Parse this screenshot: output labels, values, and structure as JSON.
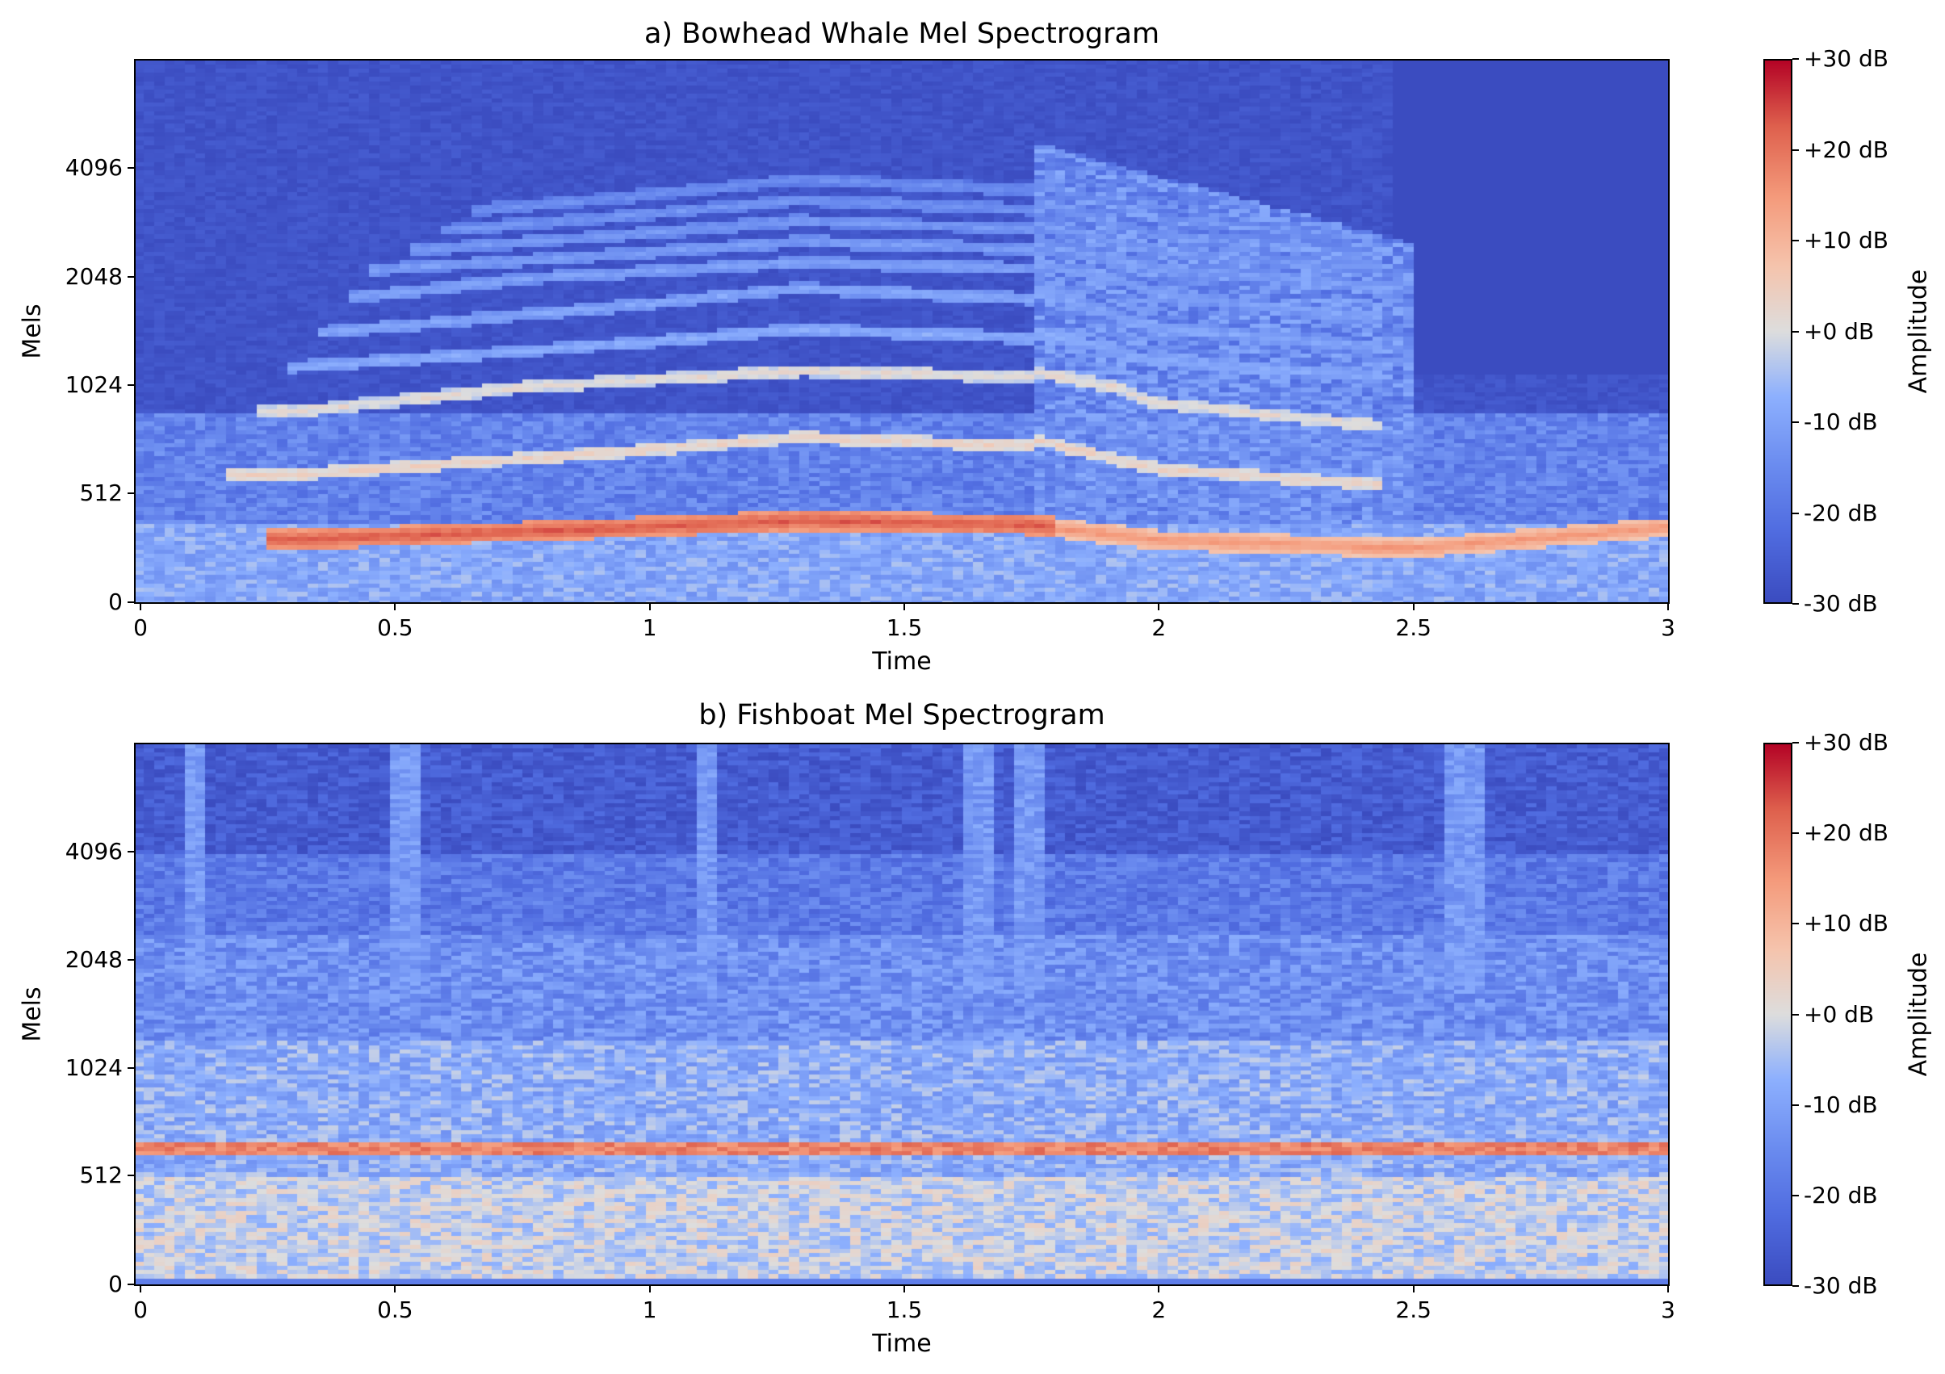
{
  "chart_data": [
    {
      "type": "heatmap",
      "title": "a) Bowhead Whale Mel Spectrogram",
      "xlabel": "Time",
      "ylabel": "Mels",
      "x_ticks": [
        "0",
        "0.5",
        "1",
        "1.5",
        "2",
        "2.5",
        "3"
      ],
      "y_ticks": [
        "0",
        "512",
        "1024",
        "2048",
        "4096"
      ],
      "xlim": [
        0,
        3
      ],
      "colorbar": {
        "label": "Amplitude",
        "ticks": [
          "+30 dB",
          "+20 dB",
          "+10 dB",
          "+0 dB",
          "-10 dB",
          "-20 dB",
          "-30 dB"
        ],
        "range": [
          -30,
          30
        ]
      },
      "colormap": "coolwarm",
      "dominant_features": {
        "fundamental_band": [
          [
            0.3,
            300
          ],
          [
            1.0,
            360
          ],
          [
            1.3,
            390
          ],
          [
            1.75,
            370
          ],
          [
            2.0,
            300
          ],
          [
            2.5,
            260
          ],
          [
            3.0,
            360
          ]
        ],
        "harmonic_bands": [
          [
            0.5,
            620
          ],
          [
            1.3,
            1080
          ],
          [
            1.75,
            1060
          ]
        ],
        "peak_db": 22
      }
    },
    {
      "type": "heatmap",
      "title": "b) Fishboat Mel Spectrogram",
      "xlabel": "Time",
      "ylabel": "Mels",
      "x_ticks": [
        "0",
        "0.5",
        "1",
        "1.5",
        "2",
        "2.5",
        "3"
      ],
      "y_ticks": [
        "0",
        "512",
        "1024",
        "2048",
        "4096"
      ],
      "xlim": [
        0,
        3
      ],
      "colorbar": {
        "label": "Amplitude",
        "ticks": [
          "+30 dB",
          "+20 dB",
          "+10 dB",
          "+0 dB",
          "-10 dB",
          "-20 dB",
          "-30 dB"
        ],
        "range": [
          -30,
          30
        ]
      },
      "colormap": "coolwarm",
      "dominant_features": {
        "tonal_band_mels": 640,
        "tonal_band_db": 18,
        "broadband_floor_db": -5
      }
    }
  ],
  "colors": {
    "cmap_low": "#3b4cc0",
    "cmap_mid": "#dddddd",
    "cmap_high": "#b40426"
  }
}
